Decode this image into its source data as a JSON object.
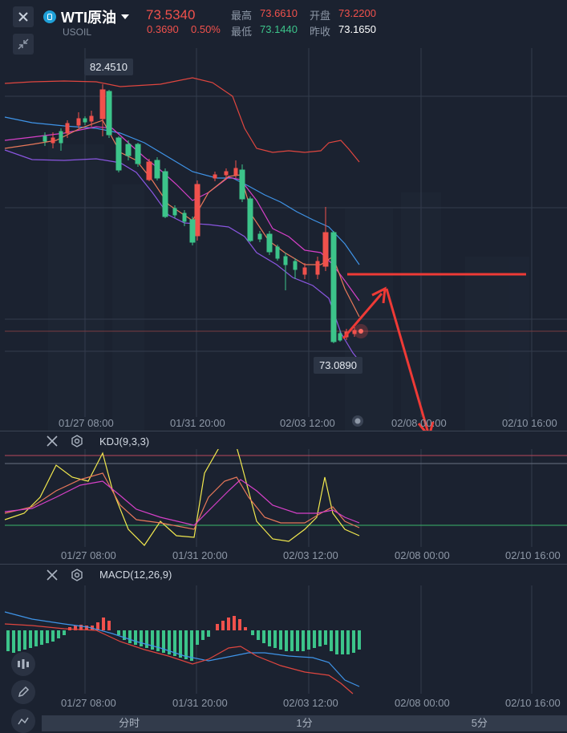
{
  "header": {
    "symbol_name": "WTI原油",
    "symbol_code": "USOIL",
    "last_price": "73.5340",
    "change": "0.3690",
    "change_pct": "0.50%",
    "labels": {
      "high": "最高",
      "low": "最低",
      "open": "开盘",
      "prev_close": "昨收"
    },
    "high": "73.6610",
    "low": "73.1440",
    "open": "73.2200",
    "prev_close": "73.1650"
  },
  "main_chart": {
    "high_tag": "82.4510",
    "low_tag": "73.0890",
    "x_labels": [
      "01/27 08:00",
      "01/31 20:00",
      "02/03 12:00",
      "02/08 00:00",
      "02/10 16:00"
    ]
  },
  "kdj": {
    "title": "KDJ(9,3,3)",
    "x_labels": [
      "01/27 08:00",
      "01/31 20:00",
      "02/03 12:00",
      "02/08 00:00",
      "02/10 16:00"
    ]
  },
  "macd": {
    "title": "MACD(12,26,9)",
    "x_labels": [
      "01/27 08:00",
      "01/31 20:00",
      "02/03 12:00",
      "02/08 00:00",
      "02/10 16:00"
    ]
  },
  "bottom_tabs": [
    "分时",
    "1分",
    "5分"
  ],
  "colors": {
    "up": "#f0514c",
    "down": "#3cc48a",
    "bg": "#1b2230"
  }
}
